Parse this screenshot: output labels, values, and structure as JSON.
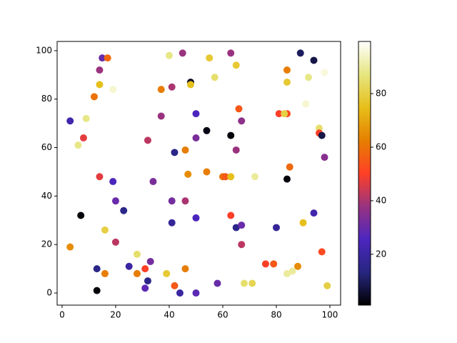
{
  "chart_data": {
    "type": "scatter",
    "colormap": "CMRmap",
    "x": [
      3,
      8,
      6,
      9,
      15,
      17,
      14,
      12,
      14,
      19,
      14,
      19,
      7,
      16,
      3,
      20,
      23,
      20,
      13,
      16,
      13,
      25,
      28,
      28,
      31,
      33,
      32,
      31,
      39,
      42,
      44,
      46,
      50,
      40,
      45,
      55,
      63,
      65,
      57,
      48,
      48,
      41,
      37,
      37,
      50,
      32,
      50,
      42,
      46,
      54,
      63,
      67,
      66,
      65,
      47,
      54,
      60,
      61,
      63,
      72,
      34,
      41,
      46,
      41,
      50,
      63,
      65,
      67,
      67,
      58,
      68,
      71,
      76,
      79,
      84,
      86,
      88,
      80,
      90,
      94,
      97,
      99,
      85,
      84,
      89,
      94,
      84,
      84,
      92,
      98,
      81,
      84,
      83,
      91,
      96,
      96,
      97,
      98
    ],
    "y": [
      71,
      64,
      61,
      72,
      97,
      97,
      92,
      81,
      86,
      84,
      48,
      46,
      32,
      26,
      19,
      38,
      34,
      21,
      10,
      8,
      1,
      11,
      16,
      8,
      10,
      13,
      5,
      2,
      8,
      3,
      0,
      10,
      0,
      98,
      99,
      97,
      99,
      94,
      89,
      87,
      86,
      85,
      84,
      73,
      74,
      63,
      64,
      58,
      59,
      67,
      65,
      71,
      76,
      59,
      49,
      50,
      48,
      48,
      48,
      48,
      46,
      38,
      38,
      29,
      31,
      32,
      27,
      28,
      20,
      4,
      4,
      4,
      12,
      12,
      8,
      9,
      11,
      27,
      29,
      33,
      17,
      3,
      52,
      47,
      99,
      96,
      92,
      87,
      89,
      91,
      74,
      74,
      74,
      78,
      68,
      66,
      65,
      56
    ],
    "c": [
      22,
      47,
      88,
      88,
      30,
      58,
      38,
      60,
      75,
      95,
      47,
      25,
      2,
      80,
      65,
      30,
      15,
      42,
      15,
      62,
      2,
      20,
      85,
      62,
      50,
      32,
      15,
      28,
      78,
      55,
      20,
      62,
      28,
      88,
      38,
      78,
      38,
      78,
      85,
      5,
      75,
      40,
      62,
      38,
      25,
      42,
      33,
      15,
      62,
      3,
      2,
      36,
      55,
      38,
      65,
      62,
      60,
      55,
      75,
      90,
      33,
      32,
      40,
      18,
      25,
      50,
      15,
      30,
      42,
      30,
      85,
      82,
      50,
      55,
      90,
      90,
      65,
      18,
      75,
      22,
      52,
      80,
      58,
      2,
      10,
      8,
      62,
      78,
      88,
      96,
      50,
      52,
      80,
      95,
      85,
      50,
      8,
      35
    ],
    "xlim": [
      -1.85,
      104
    ],
    "ylim": [
      -5,
      103.8
    ],
    "clim": [
      1,
      99.5
    ],
    "xticks": [
      0,
      20,
      40,
      60,
      80,
      100
    ],
    "yticks": [
      0,
      20,
      40,
      60,
      80,
      100
    ],
    "cticks": [
      20,
      40,
      60,
      80
    ]
  }
}
